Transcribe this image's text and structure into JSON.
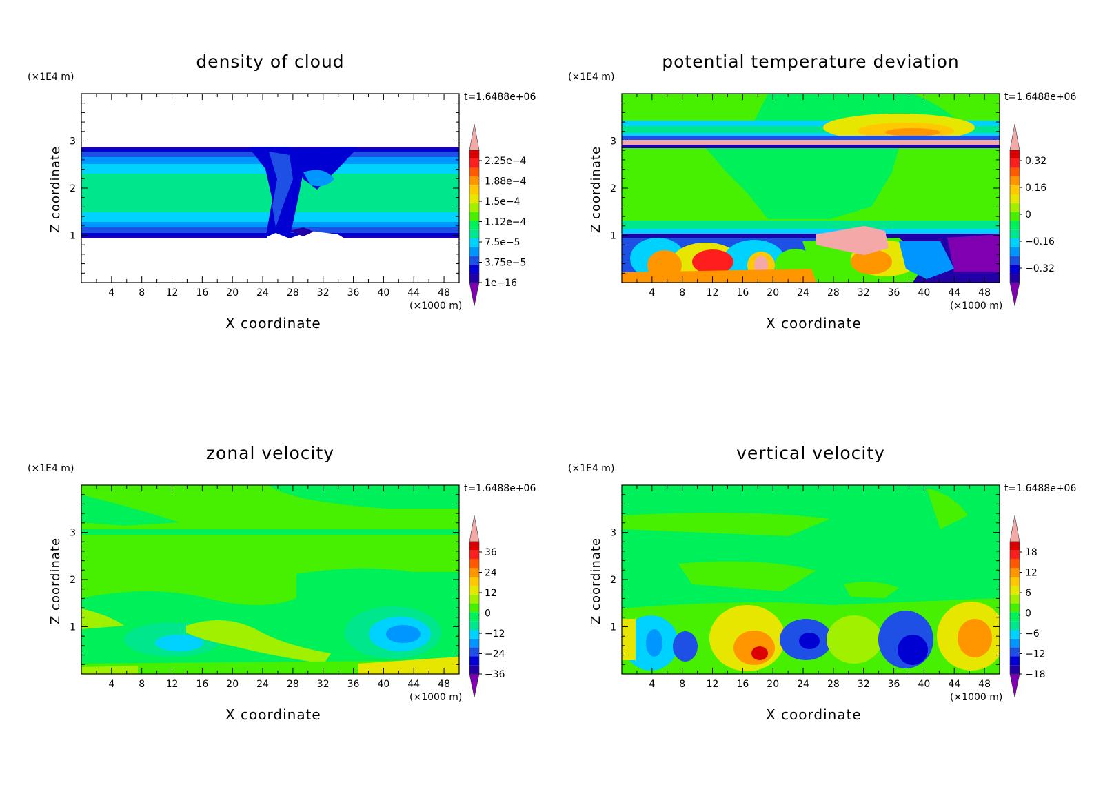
{
  "colors": {
    "scale": [
      "#7e00b0",
      "#2200a8",
      "#0000d2",
      "#1e50e6",
      "#0096ff",
      "#00d2ff",
      "#00e68c",
      "#00f05a",
      "#46f000",
      "#a0f000",
      "#e6e600",
      "#ffc800",
      "#ff9600",
      "#ff5a00",
      "#ff1e1e",
      "#dc0000",
      "#f5a8a8"
    ]
  },
  "chart_data": [
    {
      "type": "heatmap",
      "title": "density of cloud",
      "xlabel": "X coordinate",
      "ylabel": "Z coordinate",
      "x_unit": "(×1000 m)",
      "y_unit": "(×1E4 m)",
      "time_label": "t=1.6488e+06",
      "xlim": [
        0,
        50
      ],
      "ylim": [
        0,
        4
      ],
      "x_ticks": [
        "4",
        "8",
        "12",
        "16",
        "20",
        "24",
        "28",
        "32",
        "36",
        "40",
        "44",
        "48"
      ],
      "y_ticks": [
        "1",
        "2",
        "3"
      ],
      "colorbar_labels": [
        "2.25e−4",
        "1.88e−4",
        "1.5e−4",
        "1.12e−4",
        "7.5e−5",
        "3.75e−5",
        "1e−16"
      ],
      "colorbar_values": [
        0.000225,
        0.000188,
        0.00015,
        0.000112,
        7.5e-05,
        3.75e-05,
        1e-16
      ]
    },
    {
      "type": "heatmap",
      "title": "potential temperature deviation",
      "xlabel": "X coordinate",
      "ylabel": "Z coordinate",
      "x_unit": "(×1000 m)",
      "y_unit": "(×1E4 m)",
      "time_label": "t=1.6488e+06",
      "xlim": [
        0,
        50
      ],
      "ylim": [
        0,
        4
      ],
      "x_ticks": [
        "4",
        "8",
        "12",
        "16",
        "20",
        "24",
        "28",
        "32",
        "36",
        "40",
        "44",
        "48"
      ],
      "y_ticks": [
        "1",
        "2",
        "3"
      ],
      "colorbar_labels": [
        "0.32",
        "0.16",
        "0",
        "−0.16",
        "−0.32"
      ],
      "colorbar_values": [
        0.32,
        0.16,
        0,
        -0.16,
        -0.32
      ]
    },
    {
      "type": "heatmap",
      "title": "zonal velocity",
      "xlabel": "X coordinate",
      "ylabel": "Z coordinate",
      "x_unit": "(×1000 m)",
      "y_unit": "(×1E4 m)",
      "time_label": "t=1.6488e+06",
      "xlim": [
        0,
        50
      ],
      "ylim": [
        0,
        4
      ],
      "x_ticks": [
        "4",
        "8",
        "12",
        "16",
        "20",
        "24",
        "28",
        "32",
        "36",
        "40",
        "44",
        "48"
      ],
      "y_ticks": [
        "1",
        "2",
        "3"
      ],
      "colorbar_labels": [
        "36",
        "24",
        "12",
        "0",
        "−12",
        "−24",
        "−36"
      ],
      "colorbar_values": [
        36,
        24,
        12,
        0,
        -12,
        -24,
        -36
      ]
    },
    {
      "type": "heatmap",
      "title": "vertical velocity",
      "xlabel": "X coordinate",
      "ylabel": "Z coordinate",
      "x_unit": "(×1000 m)",
      "y_unit": "(×1E4 m)",
      "time_label": "t=1.6488e+06",
      "xlim": [
        0,
        50
      ],
      "ylim": [
        0,
        4
      ],
      "x_ticks": [
        "4",
        "8",
        "12",
        "16",
        "20",
        "24",
        "28",
        "32",
        "36",
        "40",
        "44",
        "48"
      ],
      "y_ticks": [
        "1",
        "2",
        "3"
      ],
      "colorbar_labels": [
        "18",
        "12",
        "6",
        "0",
        "−6",
        "−12",
        "−18"
      ],
      "colorbar_values": [
        18,
        12,
        6,
        0,
        -6,
        -12,
        -18
      ]
    }
  ]
}
